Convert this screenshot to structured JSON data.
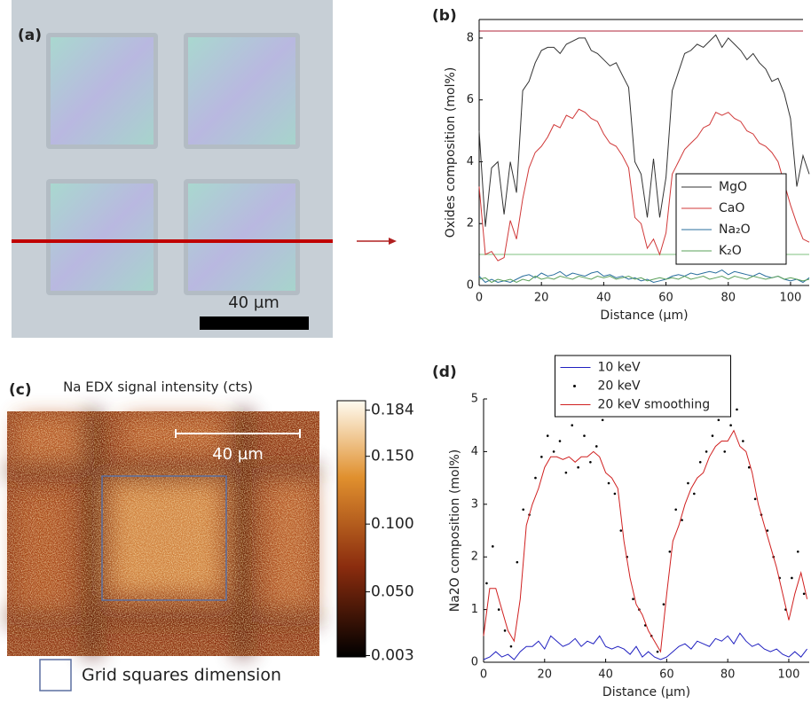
{
  "panels": {
    "a": {
      "label": "(a)",
      "scale_bar": "40 µm"
    },
    "c": {
      "label": "(c)",
      "title": "Na EDX signal intensity (cts)",
      "scale_bar": "40 µm",
      "legend": "Grid squares dimension",
      "colorbar": {
        "lim": [
          0.002,
          0.191
        ],
        "ticks": [
          0.184,
          {
            "value": 0.15,
            "label": "0.150"
          },
          {
            "value": 0.1,
            "label": "0.100"
          },
          {
            "value": 0.05,
            "label": "0.050"
          },
          0.003
        ]
      }
    }
  },
  "chart_data": [
    {
      "type": "line",
      "label": "(b)",
      "x_label": "Distance (µm)",
      "y_label": "Oxides composition (mol%)",
      "xlim": [
        0,
        106
      ],
      "ylim": [
        0,
        8.6
      ],
      "xticks": [
        0,
        20,
        40,
        60,
        80,
        100
      ],
      "yticks": [
        0,
        2,
        4,
        6,
        8
      ],
      "legend": "lower right",
      "x": [
        0,
        2,
        4,
        6,
        8,
        10,
        12,
        14,
        16,
        18,
        20,
        22,
        24,
        26,
        28,
        30,
        32,
        34,
        36,
        38,
        40,
        42,
        44,
        46,
        48,
        50,
        52,
        54,
        56,
        58,
        60,
        62,
        64,
        66,
        68,
        70,
        72,
        74,
        76,
        78,
        80,
        82,
        84,
        86,
        88,
        90,
        92,
        94,
        96,
        98,
        100,
        102,
        104,
        106
      ],
      "series": [
        {
          "name": "MgO",
          "color": "#333333",
          "values": [
            5,
            1.9,
            3.8,
            4,
            2.3,
            4,
            3,
            6.3,
            6.6,
            7.2,
            7.6,
            7.7,
            7.7,
            7.5,
            7.8,
            7.9,
            8.0,
            8.0,
            7.6,
            7.5,
            7.3,
            7.1,
            7.2,
            6.8,
            6.4,
            4.0,
            3.6,
            2.2,
            4.1,
            2.2,
            3.5,
            6.3,
            6.9,
            7.5,
            7.6,
            7.8,
            7.7,
            7.9,
            8.1,
            7.7,
            8.0,
            7.8,
            7.6,
            7.3,
            7.5,
            7.2,
            7.0,
            6.6,
            6.7,
            6.2,
            5.4,
            3.2,
            4.2,
            3.6
          ]
        },
        {
          "name": "CaO",
          "color": "#d03838",
          "values": [
            3.2,
            1.0,
            1.1,
            0.8,
            0.9,
            2.1,
            1.5,
            2.8,
            3.8,
            4.3,
            4.5,
            4.8,
            5.2,
            5.1,
            5.5,
            5.4,
            5.7,
            5.6,
            5.4,
            5.3,
            4.9,
            4.6,
            4.5,
            4.2,
            3.8,
            2.2,
            2.0,
            1.2,
            1.5,
            1.0,
            1.7,
            3.6,
            4.0,
            4.4,
            4.6,
            4.8,
            5.1,
            5.2,
            5.6,
            5.5,
            5.6,
            5.4,
            5.3,
            5.0,
            4.9,
            4.6,
            4.5,
            4.3,
            4.0,
            3.3,
            2.6,
            2.0,
            1.5,
            1.4
          ]
        },
        {
          "name": "Na₂O",
          "color": "#2a6f9e",
          "values": [
            0.3,
            0.1,
            0.2,
            0.1,
            0.15,
            0.1,
            0.2,
            0.3,
            0.35,
            0.25,
            0.4,
            0.3,
            0.35,
            0.45,
            0.3,
            0.4,
            0.35,
            0.3,
            0.4,
            0.45,
            0.3,
            0.35,
            0.25,
            0.3,
            0.2,
            0.25,
            0.15,
            0.2,
            0.1,
            0.15,
            0.2,
            0.3,
            0.35,
            0.3,
            0.4,
            0.35,
            0.4,
            0.45,
            0.4,
            0.5,
            0.35,
            0.45,
            0.4,
            0.35,
            0.3,
            0.4,
            0.3,
            0.25,
            0.3,
            0.2,
            0.15,
            0.2,
            0.1,
            0.25
          ]
        },
        {
          "name": "K₂O",
          "color": "#5aa05a",
          "values": [
            0.2,
            0.25,
            0.1,
            0.2,
            0.15,
            0.2,
            0.1,
            0.2,
            0.15,
            0.3,
            0.2,
            0.25,
            0.2,
            0.3,
            0.25,
            0.2,
            0.3,
            0.25,
            0.2,
            0.3,
            0.25,
            0.3,
            0.2,
            0.25,
            0.3,
            0.2,
            0.25,
            0.15,
            0.2,
            0.25,
            0.2,
            0.25,
            0.2,
            0.3,
            0.2,
            0.25,
            0.3,
            0.2,
            0.25,
            0.3,
            0.2,
            0.3,
            0.25,
            0.2,
            0.3,
            0.25,
            0.2,
            0.25,
            0.3,
            0.2,
            0.25,
            0.2,
            0.15,
            0.2
          ]
        }
      ]
    },
    {
      "type": "line",
      "label": "(d)",
      "x_label": "Distance (µm)",
      "y_label": "Na2O composition (mol%)",
      "xlim": [
        0,
        106.7
      ],
      "ylim": [
        0,
        5
      ],
      "xticks": [
        0,
        20,
        40,
        60,
        80,
        100
      ],
      "yticks": [
        0,
        1,
        2,
        3,
        4,
        5
      ],
      "legend": "upper center",
      "x": [
        0,
        2,
        4,
        6,
        8,
        10,
        12,
        14,
        16,
        18,
        20,
        22,
        24,
        26,
        28,
        30,
        32,
        34,
        36,
        38,
        40,
        42,
        44,
        46,
        48,
        50,
        52,
        54,
        56,
        58,
        60,
        62,
        64,
        66,
        68,
        70,
        72,
        74,
        76,
        78,
        80,
        82,
        84,
        86,
        88,
        90,
        92,
        94,
        96,
        98,
        100,
        102,
        104,
        106
      ],
      "series": [
        {
          "name": "10 keV",
          "color": "#2020c0",
          "values": [
            0.05,
            0.1,
            0.2,
            0.1,
            0.15,
            0.05,
            0.2,
            0.3,
            0.3,
            0.4,
            0.25,
            0.5,
            0.4,
            0.3,
            0.35,
            0.45,
            0.3,
            0.4,
            0.35,
            0.5,
            0.3,
            0.25,
            0.3,
            0.25,
            0.15,
            0.3,
            0.1,
            0.2,
            0.1,
            0.05,
            0.1,
            0.2,
            0.3,
            0.35,
            0.25,
            0.4,
            0.35,
            0.3,
            0.45,
            0.4,
            0.5,
            0.35,
            0.55,
            0.4,
            0.3,
            0.35,
            0.25,
            0.2,
            0.25,
            0.15,
            0.1,
            0.2,
            0.1,
            0.25
          ]
        },
        {
          "name": "20 keV",
          "color": "#000000",
          "type": "scatter",
          "x": [
            1,
            3,
            5,
            7,
            9,
            11,
            13,
            15,
            17,
            19,
            21,
            23,
            25,
            27,
            29,
            31,
            33,
            35,
            37,
            39,
            41,
            43,
            45,
            47,
            49,
            51,
            53,
            55,
            57,
            59,
            61,
            63,
            65,
            67,
            69,
            71,
            73,
            75,
            77,
            79,
            81,
            83,
            85,
            87,
            89,
            91,
            93,
            95,
            97,
            99,
            101,
            103,
            105
          ],
          "values": [
            1.5,
            2.2,
            1.0,
            0.6,
            0.3,
            1.9,
            2.9,
            2.8,
            3.5,
            3.9,
            4.3,
            4.0,
            4.2,
            3.6,
            4.5,
            3.7,
            4.3,
            3.8,
            4.1,
            4.6,
            3.4,
            3.2,
            2.5,
            2.0,
            1.2,
            1.0,
            0.7,
            0.5,
            0.2,
            1.1,
            2.1,
            2.9,
            2.7,
            3.4,
            3.2,
            3.8,
            4.0,
            4.3,
            4.6,
            4.0,
            4.5,
            4.8,
            4.2,
            3.7,
            3.1,
            2.8,
            2.5,
            2.0,
            1.6,
            1.0,
            1.6,
            2.1,
            1.3
          ]
        },
        {
          "name": "20 keV smoothing",
          "color": "#d02020",
          "values": [
            0.5,
            1.4,
            1.4,
            1.0,
            0.6,
            0.4,
            1.2,
            2.6,
            3.0,
            3.3,
            3.7,
            3.9,
            3.9,
            3.85,
            3.9,
            3.8,
            3.9,
            3.9,
            4.0,
            3.9,
            3.6,
            3.5,
            3.3,
            2.3,
            1.6,
            1.1,
            0.9,
            0.6,
            0.4,
            0.2,
            1.3,
            2.3,
            2.6,
            3.0,
            3.3,
            3.5,
            3.6,
            3.9,
            4.1,
            4.2,
            4.2,
            4.4,
            4.1,
            4.0,
            3.6,
            3.0,
            2.6,
            2.2,
            1.8,
            1.3,
            0.8,
            1.3,
            1.7,
            1.2
          ]
        }
      ]
    }
  ]
}
